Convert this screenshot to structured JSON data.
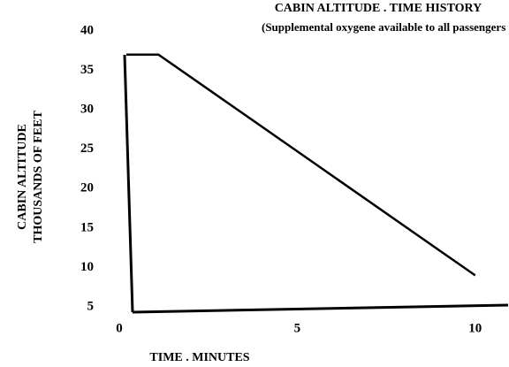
{
  "chart_data": {
    "type": "line",
    "title": "CABIN ALTITUDE . TIME HISTORY",
    "subtitle": "(Supplemental oxygene available to all passengers )",
    "y_label": [
      "CABIN ALTITUDE",
      "THOUSANDS OF FEET"
    ],
    "x_label": "TIME . MINUTES",
    "x": [
      0.2,
      1.1,
      10
    ],
    "values": [
      37,
      37,
      9
    ],
    "color": "#000000",
    "xlim": [
      0,
      10.9
    ],
    "xticks": [
      0,
      5,
      10
    ],
    "ylim": [
      4.5,
      40.5
    ],
    "yticks": [
      5,
      10,
      15,
      20,
      25,
      30,
      35,
      40
    ],
    "grid": false
  }
}
